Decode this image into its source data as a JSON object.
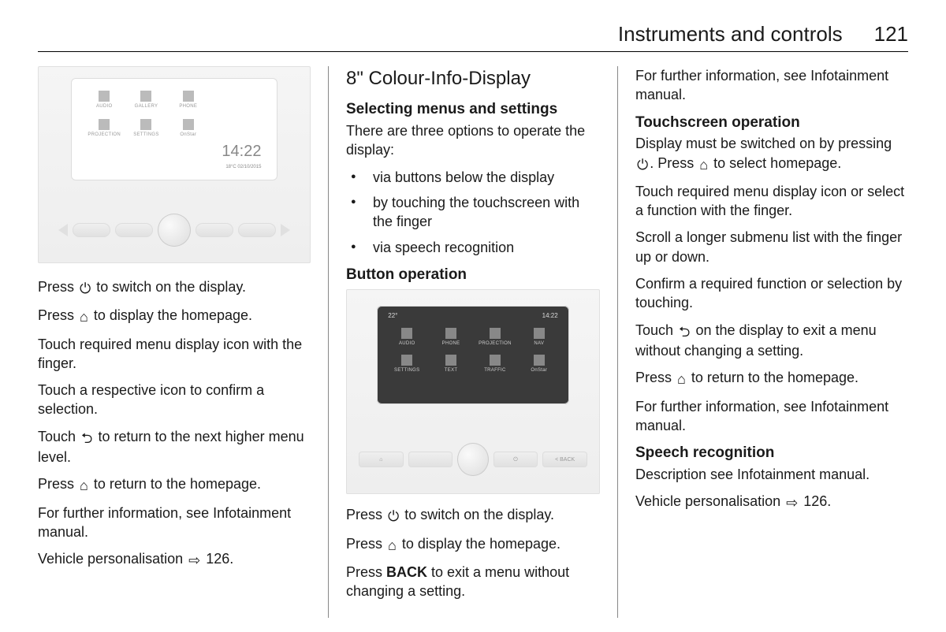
{
  "header": {
    "section": "Instruments and controls",
    "page": "121"
  },
  "icons": {
    "power": "⏻",
    "home": "⌂",
    "back_arrow": "⮌",
    "ref_arrow": "⇨"
  },
  "col1": {
    "screen": {
      "time": "14:22",
      "date_temp": "18°C   02/10/2015",
      "icons": [
        {
          "label": "AUDIO"
        },
        {
          "label": "GALLERY"
        },
        {
          "label": "PHONE"
        },
        {
          "label": "PROJECTION"
        },
        {
          "label": "SETTINGS"
        },
        {
          "label": "OnStar"
        }
      ]
    },
    "p1_a": "Press ",
    "p1_b": " to switch on the display.",
    "p2_a": "Press ",
    "p2_b": " to display the homepage.",
    "p3": "Touch required menu display icon with the finger.",
    "p4": "Touch a respective icon to confirm a selection.",
    "p5_a": "Touch ",
    "p5_b": " to return to the next higher menu level.",
    "p6_a": "Press ",
    "p6_b": " to return to the homepage.",
    "p7": "For further information, see Infotainment manual.",
    "p8_a": "Vehicle personalisation ",
    "p8_b": " 126."
  },
  "col2": {
    "h1": "8\" Colour-Info-Display",
    "h2": "Selecting menus and settings",
    "intro": "There are three options to operate the display:",
    "bullets": [
      "via buttons below the display",
      "by touching the touchscreen with the finger",
      "via speech recognition"
    ],
    "h3": "Button operation",
    "screen": {
      "temp": "22°",
      "time": "14:22",
      "icons": [
        {
          "label": "AUDIO"
        },
        {
          "label": "PHONE"
        },
        {
          "label": "PROJECTION"
        },
        {
          "label": "NAV"
        },
        {
          "label": "SETTINGS"
        },
        {
          "label": "TEXT"
        },
        {
          "label": "TRAFFIC"
        },
        {
          "label": "OnStar"
        }
      ],
      "buttons": [
        "⌂",
        "⏻",
        "< BACK"
      ]
    },
    "p1_a": "Press ",
    "p1_b": " to switch on the display.",
    "p2_a": "Press ",
    "p2_b": " to display the homepage.",
    "p3_a": "Press ",
    "p3_b": "BACK",
    "p3_c": " to exit a menu without changing a setting."
  },
  "col3": {
    "p1": "For further information, see Infotainment manual.",
    "h1": "Touchscreen operation",
    "p2_a": "Display must be switched on by pressing ",
    "p2_b": ". Press ",
    "p2_c": " to select homepage.",
    "p3": "Touch required menu display icon or select a function with the finger.",
    "p4": "Scroll a longer submenu list with the finger up or down.",
    "p5": "Confirm a required function or selection by touching.",
    "p6_a": "Touch ",
    "p6_b": " on the display to exit a menu without changing a setting.",
    "p7_a": "Press ",
    "p7_b": " to return to the homepage.",
    "p8": "For further information, see Infotainment manual.",
    "h2": "Speech recognition",
    "p9": "Description see Infotainment manual.",
    "p10_a": "Vehicle personalisation ",
    "p10_b": " 126."
  }
}
